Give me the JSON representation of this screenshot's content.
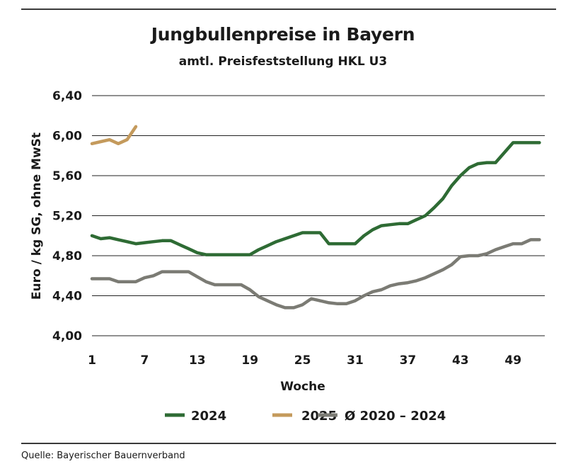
{
  "header": {
    "title": "Jungbullenpreise in Bayern",
    "subtitle": "amtl. Preisfeststellung HKL U3"
  },
  "footer": {
    "source": "Quelle: Bayerischer Bauernverband"
  },
  "chart_data": {
    "type": "line",
    "title": "Jungbullenpreise in Bayern",
    "subtitle": "amtl. Preisfeststellung HKL U3",
    "xlabel": "Woche",
    "ylabel": "Euro / kg SG, ohne MwSt",
    "xlim": [
      1,
      52
    ],
    "ylim": [
      4.0,
      6.4
    ],
    "x_ticks": [
      1,
      7,
      13,
      19,
      25,
      31,
      37,
      43,
      49
    ],
    "x_tick_labels": [
      "1",
      "7",
      "13",
      "19",
      "25",
      "31",
      "37",
      "43",
      "49"
    ],
    "y_ticks": [
      4.0,
      4.4,
      4.8,
      5.2,
      5.6,
      6.0,
      6.4
    ],
    "y_tick_labels": [
      "4,00",
      "4,40",
      "4,80",
      "5,20",
      "5,60",
      "6,00",
      "6,40"
    ],
    "grid": "horizontal",
    "legend_position": "bottom",
    "series": [
      {
        "name": "2024",
        "color": "#2e6b34",
        "x": [
          1,
          2,
          3,
          4,
          5,
          6,
          7,
          8,
          9,
          10,
          11,
          12,
          13,
          14,
          15,
          16,
          17,
          18,
          19,
          20,
          21,
          22,
          23,
          24,
          25,
          26,
          27,
          28,
          29,
          30,
          31,
          32,
          33,
          34,
          35,
          36,
          37,
          38,
          39,
          40,
          41,
          42,
          43,
          44,
          45,
          46,
          47,
          48,
          49,
          50,
          51,
          52
        ],
        "values": [
          5.0,
          4.97,
          4.98,
          4.96,
          4.94,
          4.92,
          4.93,
          4.94,
          4.95,
          4.95,
          4.91,
          4.87,
          4.83,
          4.81,
          4.81,
          4.81,
          4.81,
          4.81,
          4.81,
          4.86,
          4.9,
          4.94,
          4.97,
          5.0,
          5.03,
          5.03,
          5.03,
          4.92,
          4.92,
          4.92,
          4.92,
          5.0,
          5.06,
          5.1,
          5.11,
          5.12,
          5.12,
          5.16,
          5.2,
          5.28,
          5.37,
          5.5,
          5.6,
          5.68,
          5.72,
          5.73,
          5.73,
          5.83,
          5.93,
          5.93,
          5.93,
          5.93
        ]
      },
      {
        "name": "2025",
        "color": "#c49a5c",
        "x": [
          1,
          2,
          3,
          4,
          5,
          6
        ],
        "values": [
          5.92,
          5.94,
          5.96,
          5.92,
          5.96,
          6.09
        ]
      },
      {
        "name": "Ø 2020 – 2024",
        "color": "#7b7b74",
        "x": [
          1,
          2,
          3,
          4,
          5,
          6,
          7,
          8,
          9,
          10,
          11,
          12,
          13,
          14,
          15,
          16,
          17,
          18,
          19,
          20,
          21,
          22,
          23,
          24,
          25,
          26,
          27,
          28,
          29,
          30,
          31,
          32,
          33,
          34,
          35,
          36,
          37,
          38,
          39,
          40,
          41,
          42,
          43,
          44,
          45,
          46,
          47,
          48,
          49,
          50,
          51,
          52
        ],
        "values": [
          4.57,
          4.57,
          4.57,
          4.54,
          4.54,
          4.54,
          4.58,
          4.6,
          4.64,
          4.64,
          4.64,
          4.64,
          4.59,
          4.54,
          4.51,
          4.51,
          4.51,
          4.51,
          4.46,
          4.39,
          4.35,
          4.31,
          4.28,
          4.28,
          4.31,
          4.37,
          4.35,
          4.33,
          4.32,
          4.32,
          4.35,
          4.4,
          4.44,
          4.46,
          4.5,
          4.52,
          4.53,
          4.55,
          4.58,
          4.62,
          4.66,
          4.71,
          4.79,
          4.8,
          4.8,
          4.82,
          4.86,
          4.89,
          4.92,
          4.92,
          4.96,
          4.96
        ]
      }
    ]
  }
}
